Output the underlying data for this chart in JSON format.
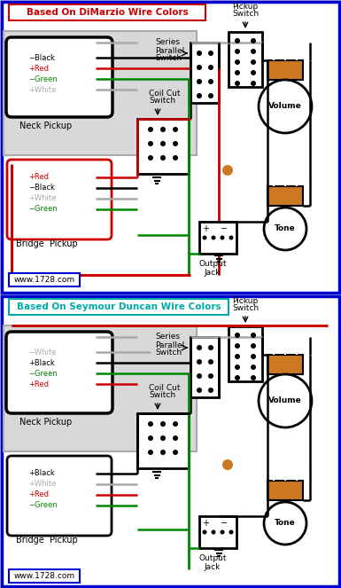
{
  "bg": "#b8b8e8",
  "white": "#ffffff",
  "black": "#000000",
  "red": "#cc0000",
  "green": "#008800",
  "gray": "#aaaaaa",
  "ltgray": "#d8d8d8",
  "orange": "#cc7722",
  "blue": "#0000cc",
  "cyan": "#00aaaa",
  "title1": "Based On DiMarzio Wire Colors",
  "title2": "Based On Seymour Duncan Wire Colors",
  "url": "www.1728.com"
}
